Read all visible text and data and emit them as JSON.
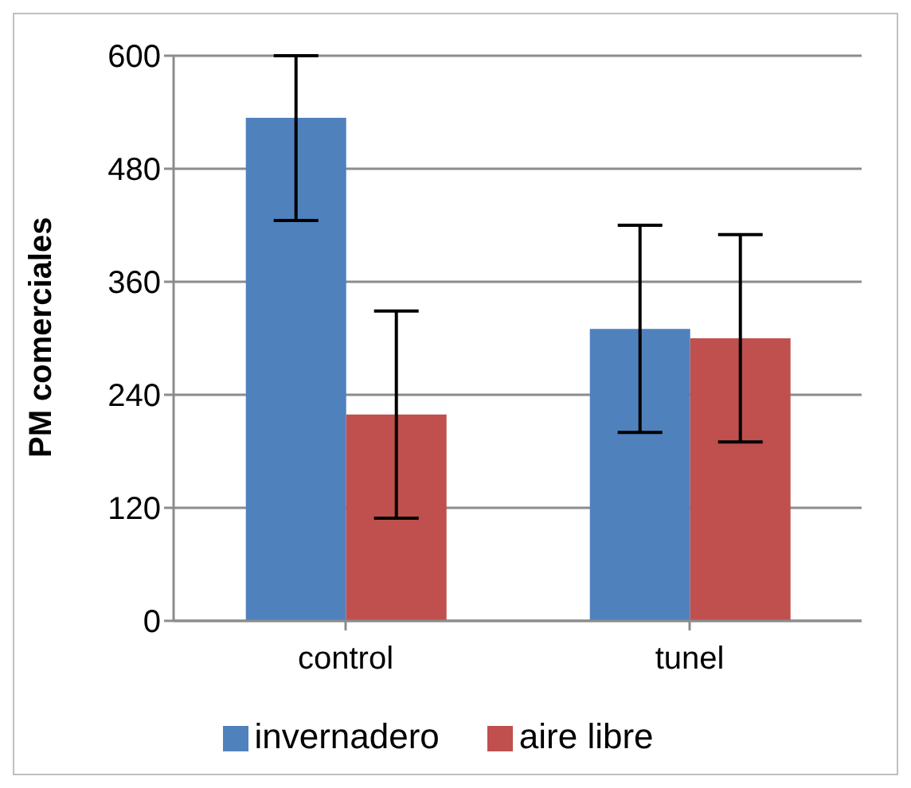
{
  "chart_data": {
    "type": "bar",
    "ylabel": "PM comerciales",
    "categories": [
      "control",
      "tunel"
    ],
    "series": [
      {
        "name": "invernadero",
        "color": "#4f81bd",
        "values": [
          534,
          310
        ],
        "errors": [
          [
            425,
            600
          ],
          110
        ]
      },
      {
        "name": "aire libre",
        "color": "#c0504d",
        "values": [
          219,
          300
        ],
        "errors": [
          110,
          110
        ]
      }
    ],
    "ylim": [
      0,
      600
    ],
    "yticks": [
      0,
      120,
      240,
      360,
      480,
      600
    ],
    "grid": "y",
    "legend": "bottom"
  }
}
